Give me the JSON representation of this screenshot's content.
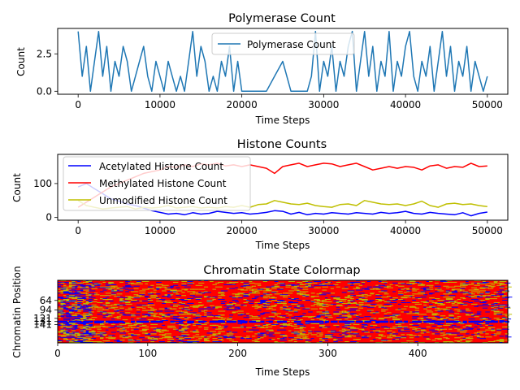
{
  "chart_data": [
    {
      "type": "line",
      "title": "Polymerase Count",
      "xlabel": "Time Steps",
      "ylabel": "Count",
      "xlim": [
        -2500,
        52500
      ],
      "ylim": [
        -0.2,
        4.2
      ],
      "xticks": [
        0,
        10000,
        20000,
        30000,
        40000,
        50000
      ],
      "xtick_labels": [
        "0",
        "10000",
        "20000",
        "30000",
        "40000",
        "50000"
      ],
      "yticks": [
        0,
        2.5
      ],
      "ytick_labels": [
        "0.0",
        "2.5"
      ],
      "legend": "top-center",
      "series": [
        {
          "name": "Polymerase Count",
          "color": "#1f77b4",
          "x": [
            0,
            500,
            1000,
            1500,
            2000,
            2500,
            3000,
            3500,
            4000,
            4500,
            5000,
            5500,
            6000,
            6500,
            7000,
            7500,
            8000,
            8500,
            9000,
            9500,
            10000,
            10500,
            11000,
            11500,
            12000,
            12500,
            13000,
            13500,
            14000,
            14500,
            15000,
            15500,
            16000,
            16500,
            17000,
            17500,
            18000,
            18500,
            19000,
            19500,
            20000,
            21000,
            22000,
            23000,
            24000,
            25000,
            26000,
            27000,
            28000,
            28500,
            29000,
            29500,
            30000,
            30500,
            31000,
            31500,
            32000,
            32500,
            33000,
            33500,
            34000,
            34500,
            35000,
            35500,
            36000,
            36500,
            37000,
            37500,
            38000,
            38500,
            39000,
            39500,
            40000,
            40500,
            41000,
            41500,
            42000,
            42500,
            43000,
            43500,
            44000,
            44500,
            45000,
            45500,
            46000,
            46500,
            47000,
            47500,
            48000,
            48500,
            49000,
            49500,
            50000
          ],
          "values": [
            4,
            1,
            3,
            0,
            2,
            4,
            1,
            3,
            0,
            2,
            1,
            3,
            2,
            0,
            1,
            2,
            3,
            1,
            0,
            2,
            1,
            0,
            2,
            1,
            0,
            1,
            0,
            2,
            4,
            1,
            3,
            2,
            0,
            1,
            0,
            2,
            1,
            3,
            0,
            2,
            0,
            0,
            0,
            0,
            1,
            2,
            0,
            0,
            0,
            1,
            4,
            0,
            2,
            1,
            3,
            0,
            2,
            1,
            3,
            4,
            0,
            2,
            4,
            1,
            3,
            0,
            2,
            1,
            4,
            0,
            2,
            1,
            3,
            4,
            1,
            0,
            2,
            1,
            3,
            0,
            2,
            4,
            1,
            3,
            0,
            2,
            1,
            3,
            0,
            2,
            1,
            0,
            1
          ]
        }
      ]
    },
    {
      "type": "line",
      "title": "Histone Counts",
      "xlabel": "Time Steps",
      "ylabel": "Count",
      "xlim": [
        -2500,
        52500
      ],
      "ylim": [
        -8,
        186
      ],
      "xticks": [
        0,
        10000,
        20000,
        30000,
        40000,
        50000
      ],
      "xtick_labels": [
        "0",
        "10000",
        "20000",
        "30000",
        "40000",
        "50000"
      ],
      "yticks": [
        0,
        100
      ],
      "ytick_labels": [
        "0",
        "100"
      ],
      "legend": "top-left",
      "x": [
        0,
        1000,
        2000,
        3000,
        4000,
        5000,
        6000,
        7000,
        8000,
        9000,
        10000,
        11000,
        12000,
        13000,
        14000,
        15000,
        16000,
        17000,
        18000,
        19000,
        20000,
        21000,
        22000,
        23000,
        24000,
        25000,
        26000,
        27000,
        28000,
        29000,
        30000,
        31000,
        32000,
        33000,
        34000,
        35000,
        36000,
        37000,
        38000,
        39000,
        40000,
        41000,
        42000,
        43000,
        44000,
        45000,
        46000,
        47000,
        48000,
        49000,
        50000
      ],
      "series": [
        {
          "name": "Acetylated Histone Count",
          "color": "#0000ff",
          "values": [
            90,
            100,
            85,
            70,
            55,
            48,
            40,
            35,
            28,
            20,
            15,
            10,
            12,
            8,
            14,
            10,
            12,
            18,
            15,
            12,
            14,
            10,
            12,
            15,
            20,
            18,
            10,
            15,
            8,
            12,
            10,
            14,
            12,
            10,
            14,
            12,
            10,
            15,
            12,
            14,
            18,
            12,
            10,
            15,
            12,
            10,
            8,
            14,
            5,
            12,
            16
          ]
        },
        {
          "name": "Methylated Histone Count",
          "color": "#ff0000",
          "values": [
            30,
            45,
            60,
            75,
            90,
            100,
            110,
            120,
            130,
            135,
            140,
            150,
            148,
            155,
            150,
            158,
            155,
            160,
            152,
            155,
            150,
            155,
            150,
            145,
            130,
            150,
            155,
            160,
            150,
            155,
            160,
            158,
            150,
            155,
            160,
            150,
            140,
            145,
            150,
            145,
            150,
            148,
            140,
            152,
            155,
            145,
            150,
            148,
            160,
            150,
            152
          ]
        },
        {
          "name": "Unmodified Histone Count",
          "color": "#bfbf00",
          "values": [
            50,
            35,
            30,
            25,
            28,
            30,
            32,
            25,
            30,
            28,
            30,
            35,
            28,
            30,
            32,
            28,
            30,
            28,
            32,
            30,
            35,
            30,
            38,
            40,
            50,
            45,
            40,
            38,
            42,
            35,
            32,
            30,
            38,
            40,
            35,
            50,
            45,
            40,
            38,
            40,
            35,
            40,
            48,
            35,
            30,
            40,
            42,
            38,
            40,
            35,
            32
          ]
        }
      ]
    },
    {
      "type": "heatmap",
      "title": "Chromatin State Colormap",
      "xlabel": "Time Steps",
      "ylabel": "Chromatin Position",
      "xlim": [
        0,
        500
      ],
      "xticks": [
        0,
        100,
        200,
        300,
        400
      ],
      "xtick_labels": [
        "0",
        "100",
        "200",
        "300",
        "400"
      ],
      "ytick_labels": [
        "64",
        "94",
        "121",
        "131",
        "141"
      ],
      "yticks": [
        64,
        94,
        121,
        131,
        141
      ],
      "ylim": [
        199,
        0
      ],
      "colormap": {
        "acetylated": "#0000ff",
        "methylated": "#ff0000",
        "unmodified": "#bfbf00"
      },
      "state_fractions": {
        "methylated": 0.78,
        "unmodified": 0.13,
        "acetylated": 0.09
      }
    }
  ]
}
